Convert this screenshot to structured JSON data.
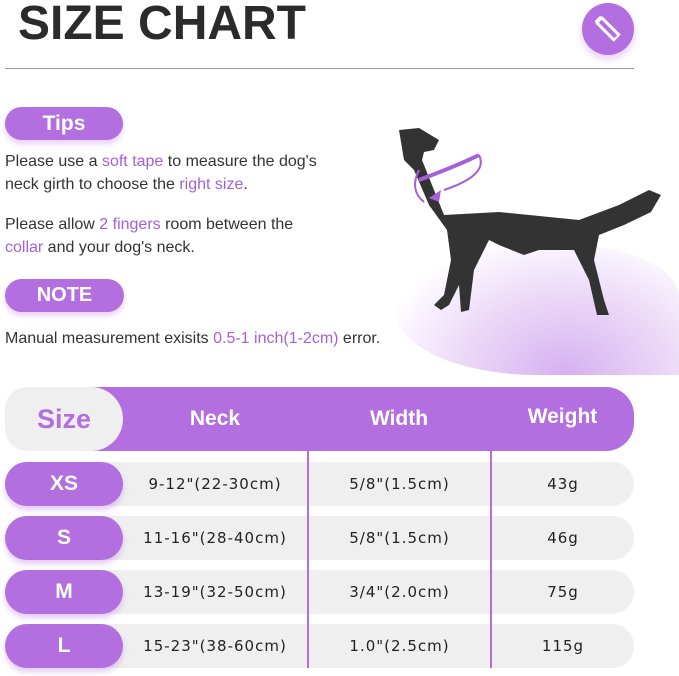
{
  "title": "SIZE CHART",
  "badge_icon": "ruler-pencil-icon",
  "tips": {
    "label": "Tips",
    "p1": {
      "a": "Please use a ",
      "h1": "soft tape",
      "b": " to measure the dog's",
      "c": "neck girth to choose the ",
      "h2": "right size",
      "d": "."
    },
    "p2": {
      "a": "Please allow ",
      "h1": "2 fingers",
      "b": " room between the",
      "h2": "collar",
      "c": " and your dog's neck."
    }
  },
  "note": {
    "label": "NOTE",
    "a": "Manual measurement exisits ",
    "h": "0.5-1 inch(1-2cm)",
    "b": " error."
  },
  "colors": {
    "accent": "#b36ee0",
    "highlight": "#a55fd8",
    "row_bg": "#efefef"
  },
  "table": {
    "headers": [
      "Size",
      "Neck",
      "Width",
      "Weight"
    ],
    "rows": [
      {
        "size": "XS",
        "neck": "9-12\"(22-30cm)",
        "width": "5/8\"(1.5cm)",
        "weight": "43g"
      },
      {
        "size": "S",
        "neck": "11-16\"(28-40cm)",
        "width": "5/8\"(1.5cm)",
        "weight": "46g"
      },
      {
        "size": "M",
        "neck": "13-19\"(32-50cm)",
        "width": "3/4\"(2.0cm)",
        "weight": "75g"
      },
      {
        "size": "L",
        "neck": "15-23\"(38-60cm)",
        "width": "1.0\"(2.5cm)",
        "weight": "115g"
      }
    ]
  }
}
